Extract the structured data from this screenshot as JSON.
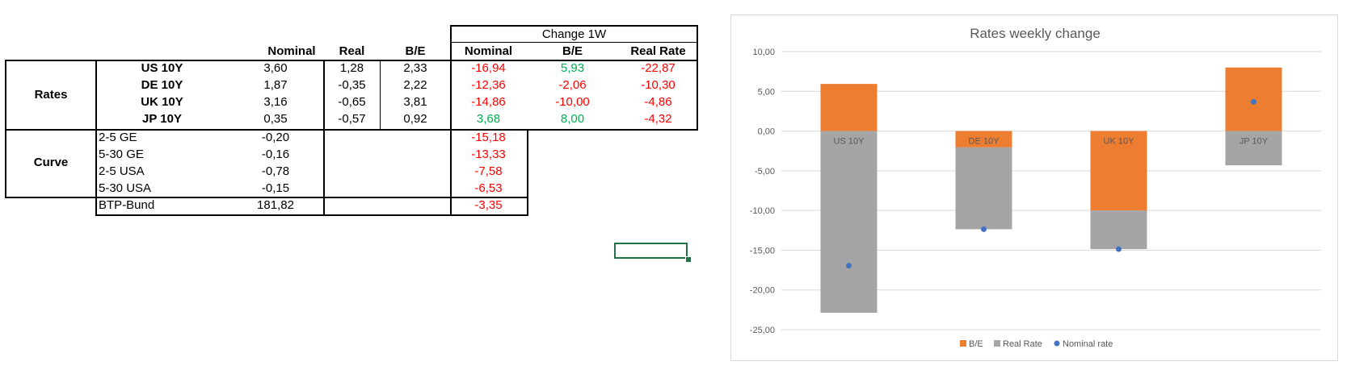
{
  "table": {
    "change_header": "Change 1W",
    "columns": [
      "Nominal",
      "Real",
      "B/E",
      "Nominal",
      "B/E",
      "Real Rate"
    ],
    "groups": [
      "Rates",
      "Curve"
    ],
    "rates": [
      {
        "label": "US 10Y",
        "nominal": "3,60",
        "real": "1,28",
        "be": "2,33",
        "chg_nominal": "-16,94",
        "chg_be": "5,93",
        "chg_real": "-22,87"
      },
      {
        "label": "DE 10Y",
        "nominal": "1,87",
        "real": "-0,35",
        "be": "2,22",
        "chg_nominal": "-12,36",
        "chg_be": "-2,06",
        "chg_real": "-10,30"
      },
      {
        "label": "UK 10Y",
        "nominal": "3,16",
        "real": "-0,65",
        "be": "3,81",
        "chg_nominal": "-14,86",
        "chg_be": "-10,00",
        "chg_real": "-4,86"
      },
      {
        "label": "JP 10Y",
        "nominal": "0,35",
        "real": "-0,57",
        "be": "0,92",
        "chg_nominal": "3,68",
        "chg_be": "8,00",
        "chg_real": "-4,32"
      }
    ],
    "curve": [
      {
        "label": "2-5 GE",
        "nominal": "-0,20",
        "chg_nominal": "-15,18"
      },
      {
        "label": "5-30 GE",
        "nominal": "-0,16",
        "chg_nominal": "-13,33"
      },
      {
        "label": "2-5 USA",
        "nominal": "-0,78",
        "chg_nominal": "-7,58"
      },
      {
        "label": "5-30 USA",
        "nominal": "-0,15",
        "chg_nominal": "-6,53"
      }
    ],
    "btp": {
      "label": "BTP-Bund",
      "nominal": "181,82",
      "chg_nominal": "-3,35"
    }
  },
  "colors": {
    "positive": "#00b050",
    "negative": "#ff0000",
    "be_bar": "#ed7d31",
    "real_bar": "#a5a5a5",
    "nominal_dot": "#4472c4",
    "selection": "#217346"
  },
  "chart_data": {
    "type": "bar",
    "stacked": true,
    "title": "Rates weekly change",
    "categories": [
      "US 10Y",
      "DE 10Y",
      "UK 10Y",
      "JP 10Y"
    ],
    "series": [
      {
        "name": "B/E",
        "kind": "bar",
        "values": [
          5.93,
          -2.06,
          -10.0,
          8.0
        ]
      },
      {
        "name": "Real Rate",
        "kind": "bar",
        "values": [
          -22.87,
          -10.3,
          -4.86,
          -4.32
        ]
      },
      {
        "name": "Nominal rate",
        "kind": "scatter",
        "values": [
          -16.94,
          -12.36,
          -14.86,
          3.68
        ]
      }
    ],
    "ylim": [
      -25,
      10
    ],
    "yticks": [
      "10,00",
      "5,00",
      "0,00",
      "-5,00",
      "-10,00",
      "-15,00",
      "-20,00",
      "-25,00"
    ],
    "grid": true,
    "legend": "bottom"
  }
}
